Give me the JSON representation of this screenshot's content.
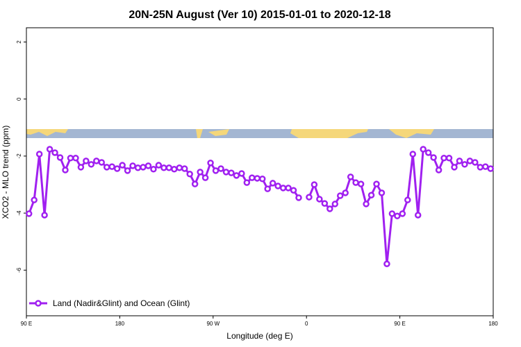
{
  "chart_data": {
    "type": "line",
    "title": "20N-25N August (Ver 10)   2015-01-01 to 2020-12-18",
    "xlabel": "Longitude (deg E)",
    "ylabel": "XCO2 - MLO trend (ppm)",
    "x": [
      92.5,
      97.5,
      102.5,
      107.5,
      112.5,
      117.5,
      122.5,
      127.5,
      132.5,
      137.5,
      142.5,
      147.5,
      152.5,
      157.5,
      162.5,
      167.5,
      172.5,
      177.5,
      182.5,
      187.5,
      192.5,
      197.5,
      202.5,
      207.5,
      212.5,
      217.5,
      222.5,
      227.5,
      232.5,
      237.5,
      242.5,
      247.5,
      252.5,
      257.5,
      262.5,
      267.5,
      272.5,
      277.5,
      282.5,
      287.5,
      292.5,
      297.5,
      302.5,
      307.5,
      312.5,
      317.5,
      322.5,
      327.5,
      332.5,
      337.5,
      342.5,
      347.5,
      352.5,
      357.5,
      362.5,
      367.5,
      372.5,
      377.5,
      382.5,
      387.5,
      392.5,
      397.5,
      402.5,
      407.5,
      412.5,
      417.5,
      422.5,
      427.5,
      432.5,
      437.5,
      442.5,
      447.5,
      452.5,
      457.5,
      462.5,
      467.5,
      472.5,
      477.5,
      482.5,
      487.5,
      492.5,
      497.5,
      502.5,
      507.5,
      512.5,
      517.5,
      522.5,
      527.5,
      532.5,
      537.5
    ],
    "series": [
      {
        "name": "Land (Nadir&Glint) and Ocean (Glint)",
        "color": "#a020f0",
        "values": [
          -4.02,
          -3.54,
          -1.93,
          -4.07,
          -1.76,
          -1.88,
          -2.05,
          -2.49,
          -2.07,
          -2.07,
          -2.39,
          -2.17,
          -2.29,
          -2.17,
          -2.22,
          -2.39,
          -2.37,
          -2.44,
          -2.32,
          -2.51,
          -2.34,
          -2.41,
          -2.39,
          -2.34,
          -2.46,
          -2.32,
          -2.41,
          -2.41,
          -2.46,
          -2.41,
          -2.44,
          -2.63,
          -2.98,
          -2.56,
          -2.76,
          -2.24,
          -2.51,
          -2.44,
          -2.56,
          -2.59,
          -2.68,
          -2.61,
          -2.93,
          -2.76,
          -2.78,
          -2.8,
          -3.15,
          -2.95,
          -3.05,
          -3.12,
          -3.12,
          -3.2,
          -3.46,
          null,
          -3.44,
          -3.0,
          -3.51,
          -3.66,
          -3.85,
          -3.68,
          -3.39,
          -3.29,
          -2.73,
          -2.93,
          -2.98,
          -3.68,
          -3.37,
          -2.98,
          -3.29,
          -5.78,
          -4.02,
          -4.1,
          -4.02,
          -3.54,
          -1.93,
          -4.07,
          -1.76,
          -1.88,
          -2.05,
          -2.49,
          -2.07,
          -2.07,
          -2.39,
          -2.17,
          -2.29,
          -2.17,
          -2.22,
          -2.39,
          -2.37,
          -2.44
        ]
      }
    ],
    "xlim": [
      90,
      540
    ],
    "xticks": [
      {
        "value": 90,
        "label": "90 E"
      },
      180,
      {
        "value": 270,
        "label": "90 W"
      },
      {
        "value": 360,
        "label": "0"
      },
      {
        "value": 450,
        "label": "90 E"
      },
      {
        "value": 540,
        "label": "180"
      }
    ],
    "ylim": [
      -7.6,
      2.5
    ],
    "yticks": [
      -6,
      -4,
      -2,
      0,
      2
    ],
    "legend": "lower left"
  }
}
